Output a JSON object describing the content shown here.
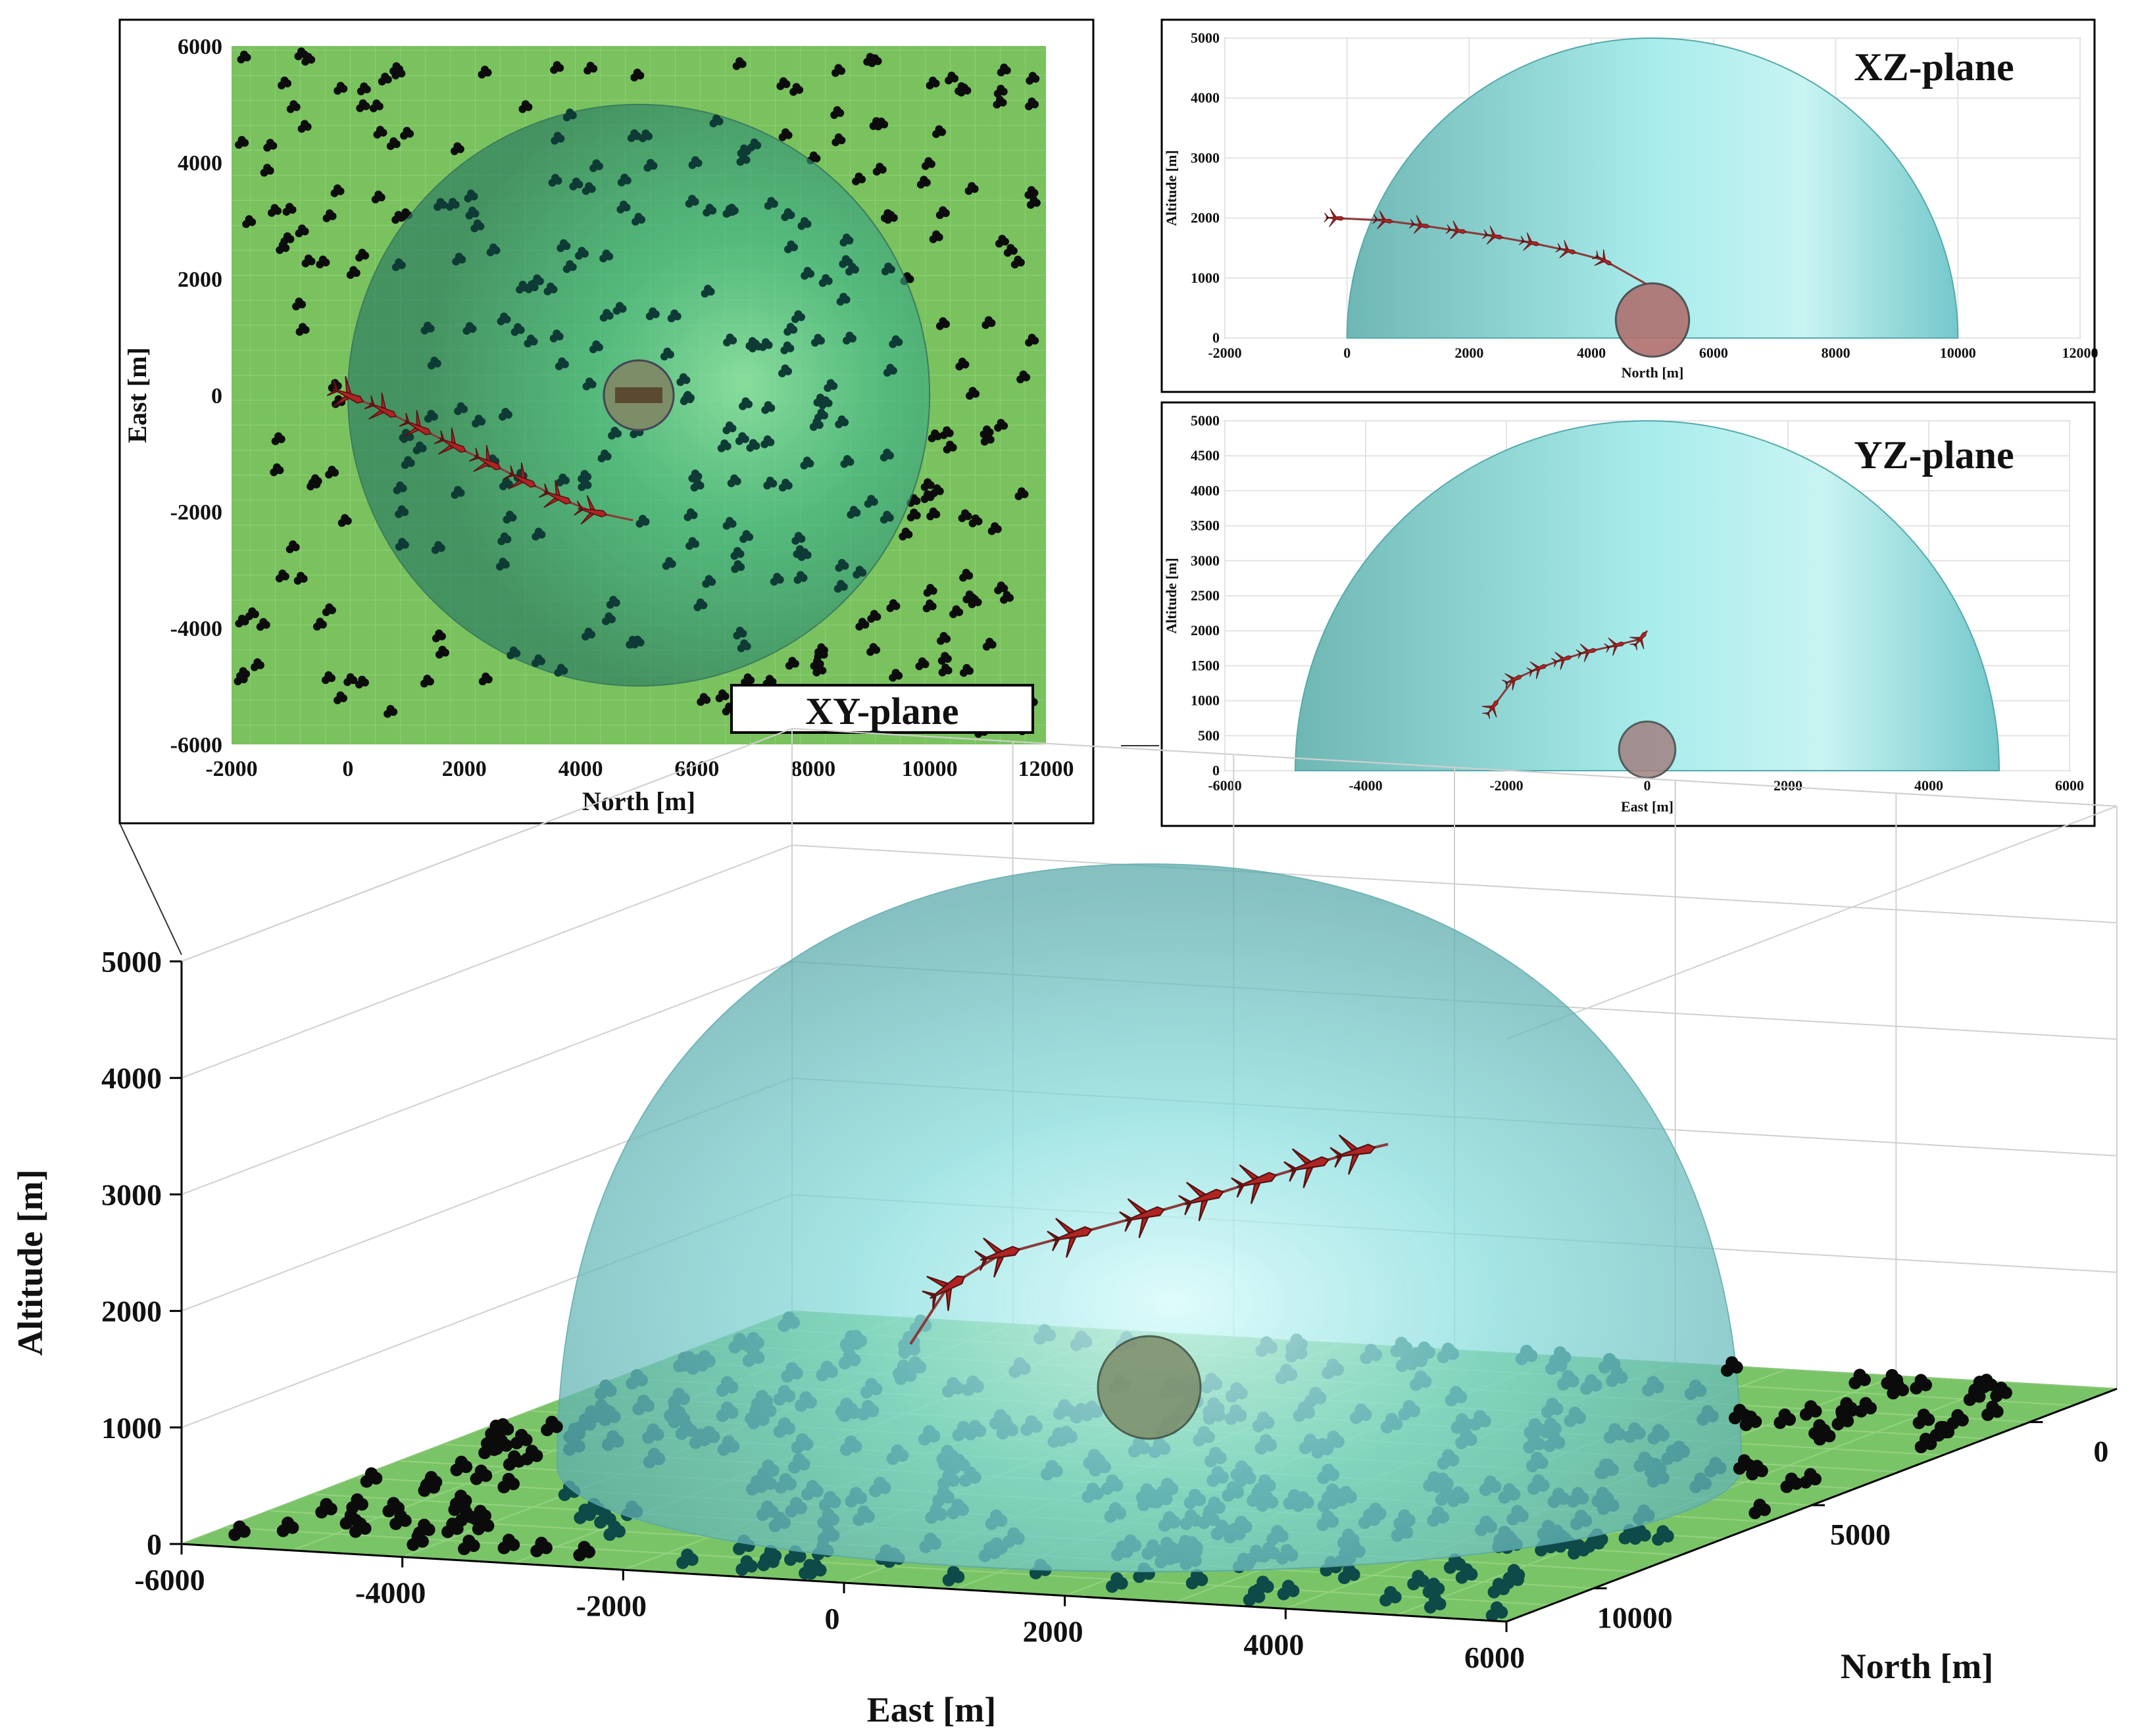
{
  "chart_data": [
    {
      "id": "xy",
      "type": "scatter",
      "title": "XY-plane",
      "xlabel": "North [m]",
      "ylabel": "East [m]",
      "xlim": [
        -2000,
        12000
      ],
      "ylim": [
        -6000,
        6000
      ],
      "xticks": [
        -2000,
        0,
        2000,
        4000,
        6000,
        8000,
        10000,
        12000
      ],
      "yticks": [
        -6000,
        -4000,
        -2000,
        0,
        2000,
        4000,
        6000
      ],
      "dome": {
        "center": [
          5000,
          0
        ],
        "radius": 5000
      },
      "target": {
        "center": [
          5000,
          0
        ],
        "radius": 600
      },
      "trajectory": {
        "x": [
          0,
          600,
          1200,
          1800,
          2400,
          3000,
          3600,
          4200,
          4900
        ],
        "y": [
          0,
          -250,
          -550,
          -850,
          -1150,
          -1450,
          -1750,
          -2000,
          -2150
        ]
      },
      "colors": {
        "ground": "#79c25e",
        "dome": "#1f8a73",
        "trees": "#101010",
        "uav": "#b02020"
      }
    },
    {
      "id": "xz",
      "type": "line",
      "title": "XZ-plane",
      "xlabel": "North [m]",
      "ylabel": "Altitude [m]",
      "xlim": [
        -2000,
        12000
      ],
      "ylim": [
        0,
        5000
      ],
      "xticks": [
        -2000,
        0,
        2000,
        4000,
        6000,
        8000,
        10000,
        12000
      ],
      "yticks": [
        0,
        1000,
        2000,
        3000,
        4000,
        5000
      ],
      "dome": {
        "center": [
          5000,
          0
        ],
        "radius": 5000
      },
      "target": {
        "center": [
          5000,
          300
        ],
        "radius": 600
      },
      "trajectory": {
        "x": [
          -200,
          600,
          1200,
          1800,
          2400,
          3000,
          3600,
          4200,
          4900
        ],
        "y": [
          2000,
          1960,
          1880,
          1790,
          1700,
          1590,
          1460,
          1300,
          900
        ]
      }
    },
    {
      "id": "yz",
      "type": "line",
      "title": "YZ-plane",
      "xlabel": "East [m]",
      "ylabel": "Altitude [m]",
      "xlim": [
        -6000,
        6000
      ],
      "ylim": [
        0,
        5000
      ],
      "xticks": [
        -6000,
        -4000,
        -2000,
        0,
        2000,
        4000,
        6000
      ],
      "yticks": [
        0,
        500,
        1000,
        1500,
        2000,
        2500,
        3000,
        3500,
        4000,
        4500,
        5000
      ],
      "dome": {
        "center": [
          0,
          0
        ],
        "radius": 5000
      },
      "target": {
        "center": [
          0,
          300
        ],
        "radius": 400
      },
      "trajectory": {
        "x": [
          -2200,
          -1900,
          -1550,
          -1200,
          -850,
          -450,
          -100,
          0
        ],
        "y": [
          900,
          1300,
          1460,
          1590,
          1700,
          1790,
          1880,
          2000
        ]
      }
    },
    {
      "id": "3d",
      "type": "scatter",
      "title": "",
      "xlabel": "East [m]",
      "ylabel": "North [m]",
      "zlabel": "Altitude [m]",
      "xlim": [
        -6000,
        6000
      ],
      "ylim": [
        12000,
        -2000
      ],
      "zlim": [
        0,
        5000
      ],
      "xticks": [
        -6000,
        -4000,
        -2000,
        0,
        2000,
        4000,
        6000
      ],
      "yticks": [
        0,
        5000,
        10000
      ],
      "zticks": [
        0,
        1000,
        2000,
        3000,
        4000,
        5000
      ],
      "dome": {
        "center": [
          0,
          5000,
          0
        ],
        "radius": 5000
      },
      "target": {
        "center": [
          0,
          5000,
          0
        ],
        "radius": 600
      }
    }
  ]
}
